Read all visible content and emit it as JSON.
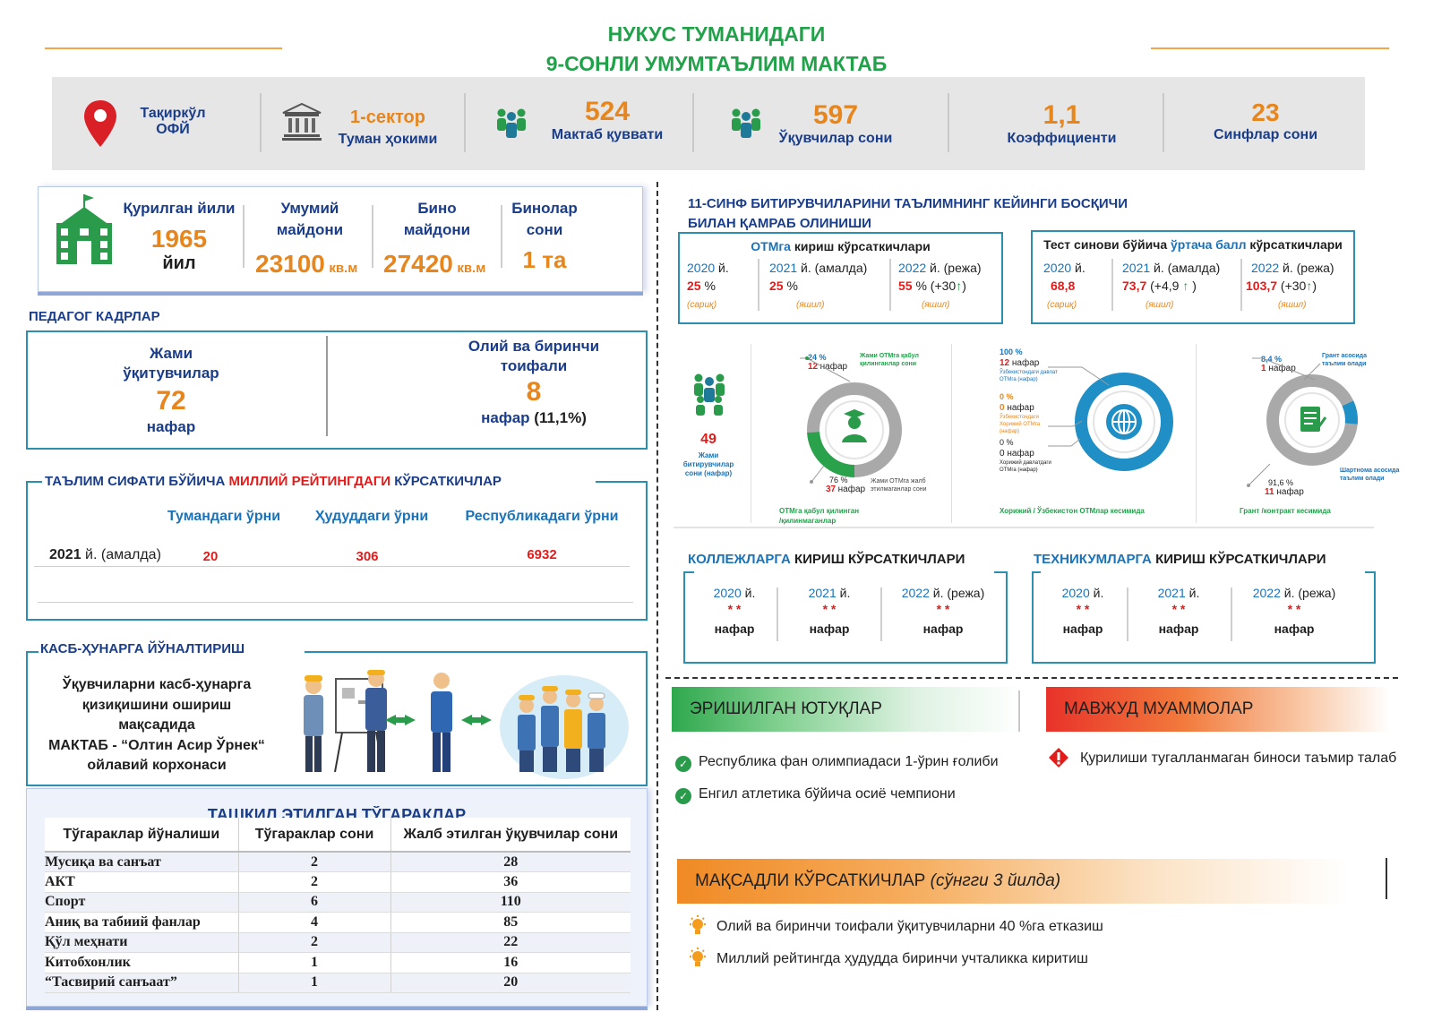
{
  "header": {
    "title_line1": "НУКУС ТУМАНИДАГИ",
    "title_line2": "9-СОНЛИ УМУМТАЪЛИМ МАКТАБ"
  },
  "stats": {
    "location_line1": "Тақиркўл",
    "location_line2": "ОФЙ",
    "sector_value": "1-сектор",
    "sector_label": "Туман ҳокими",
    "capacity_value": "524",
    "capacity_label": "Мактаб қуввати",
    "students_value": "597",
    "students_label": "Ўқувчилар сони",
    "coef_value": "1,1",
    "coef_label": "Коэффициенти",
    "classes_value": "23",
    "classes_label": "Синфлар сони"
  },
  "building": {
    "built_label": "Қурилган йили",
    "built_value": "1965",
    "built_unit": "йил",
    "total_area_label_1": "Умумий",
    "total_area_label_2": "майдони",
    "total_area_value": "23100",
    "total_area_unit": "кв.м",
    "bldg_area_label_1": "Бино",
    "bldg_area_label_2": "майдони",
    "bldg_area_value": "27420",
    "bldg_area_unit": "кв.м",
    "bldg_count_label_1": "Бинолар",
    "bldg_count_label_2": "сони",
    "bldg_count_value": "1 та"
  },
  "teachers": {
    "section_title": "ПЕДАГОГ КАДРЛАР",
    "total_label_1": "Жами",
    "total_label_2": "ўқитувчилар",
    "total_value": "72",
    "total_unit": "нафар",
    "higher_label_1": "Олий ва биринчи",
    "higher_label_2": "тоифали",
    "higher_value": "8",
    "higher_unit": "нафар",
    "higher_pct": "(11,1%)"
  },
  "rating": {
    "title_part1": "ТАЪЛИМ СИФАТИ БЎЙИЧА ",
    "title_part2": "МИЛЛИЙ РЕЙТИНГДАГИ",
    "title_part3": " КЎРСАТКИЧЛАР",
    "col1": "Тумандаги ўрни",
    "col2": "Ҳудуддаги ўрни",
    "col3": "Республикадаги ўрни",
    "row_year": "2021",
    "row_year_suffix": " й. (амалда)",
    "v1": "20",
    "v2": "306",
    "v3": "6932"
  },
  "career": {
    "title": "КАСБ-ҲУНАРГА ЙЎНАЛТИРИШ",
    "text_1": "Ўқувчиларни касб-ҳунарга",
    "text_2": "қизиқишини ошириш",
    "text_3": "мақсадида",
    "text_4": "МАКТАБ - “Олтин Асир Ўрнек“",
    "text_5": "ойлавий корхонаси"
  },
  "clubs": {
    "title": "ТАШКИЛ ЭТИЛГАН ТЎГАРАКЛАР",
    "headers": [
      "Тўгараклар йўналиши",
      "Тўгараклар сони",
      "Жалб этилган ўқувчилар сони"
    ],
    "rows": [
      [
        "Мусиқа ва санъат",
        "2",
        "28"
      ],
      [
        "АКТ",
        "2",
        "36"
      ],
      [
        "Спорт",
        "6",
        "110"
      ],
      [
        "Аниқ ва табиий фанлар",
        "4",
        "85"
      ],
      [
        "Қўл меҳнати",
        "2",
        "22"
      ],
      [
        "Китобхонлик",
        "1",
        "16"
      ],
      [
        "“Тасвирий санъаат”",
        "1",
        "20"
      ]
    ]
  },
  "graduates": {
    "title_1": "11-СИНФ БИТИРУВЧИЛАРИНИ ТАЪЛИМНИНГ КЕЙИНГИ БОСҚИЧИ",
    "title_2": "БИЛАН ҚАМРАБ ОЛИНИШИ",
    "otm_title_a": "ОТМга",
    "otm_title_b": " кириш кўрсаткичлари",
    "otm": [
      {
        "year": "2020",
        "suffix": " й.",
        "value": "25",
        "unit": " %",
        "extra": "",
        "note": "(сариқ)"
      },
      {
        "year": "2021",
        "suffix": " й. (амалда)",
        "value": "25",
        "unit": " %",
        "extra": "",
        "note": "(яшил)"
      },
      {
        "year": "2022",
        "suffix": " й. (режа)",
        "value": "55",
        "unit": " % (+30",
        "extra": "↑",
        "note": "(яшил)"
      }
    ],
    "test_title_a": "Тест синови бўйича ",
    "test_title_b": "ўртача балл",
    "test_title_c": " кўрсаткичлари",
    "test": [
      {
        "year": "2020",
        "suffix": " й.",
        "value": "68,8",
        "extra": "",
        "note": "(сариқ)"
      },
      {
        "year": "2021",
        "suffix": " й. (амалда)",
        "value": "73,7",
        "extra": " (+4,9 ",
        "note": "(яшил)"
      },
      {
        "year": "2022",
        "suffix": " й. (режа)",
        "value": "103,7",
        "extra": " (+30",
        "note": "(яшил)"
      }
    ],
    "total_value": "49",
    "total_label_1": "Жами",
    "total_label_2": "битирувчилар",
    "total_label_3": "сони (нафар)",
    "donut1": {
      "pct_in": "24 %",
      "cnt_in": "12",
      "label_in_1": "Жами ОТМга қабул",
      "label_in_2": "қилинганлар сони",
      "pct_out": "76 %",
      "cnt_out": "37",
      "label_out_1": "Жами ОТМга жалб",
      "label_out_2": "этилмаганлар  сони",
      "caption_1": "ОТМга қабул қилинган",
      "caption_2": "/қилинмаганлар",
      "fraction": 0.24
    },
    "donut2": {
      "pct1": "100 %",
      "cnt1": "12",
      "lbl1_1": "Ўзбекистондаги давлат",
      "lbl1_2": "ОТМга (нафар)",
      "pct2": "0 %",
      "cnt2": "0",
      "lbl2_1": "Ўзбекистондаги",
      "lbl2_2": "Хорижий ОТМга",
      "lbl2_3": "(нафар)",
      "pct3": "0 %",
      "cnt3": "0",
      "lbl3_1": "Хорижий давлатдаги",
      "lbl3_2": "ОТМга (нафар)",
      "caption": "Хорижий / Ўзбекистон ОТМлар кесимида",
      "fraction": 1.0
    },
    "donut3": {
      "pct_in": "8,4 %",
      "cnt_in": "1",
      "label_in_1": "Грант асосида",
      "label_in_2": "таълим олади",
      "pct_out": "91,6 %",
      "cnt_out": "11",
      "label_out_1": "Шартнома  асосида",
      "label_out_2": "таълим олади",
      "caption": "Грант /контракт кесимида",
      "fraction": 0.084
    },
    "unit_people": "нафар"
  },
  "colleges": {
    "title_a": "КОЛЛЕЖЛАРГА",
    "title_b": " КИРИШ КЎРСАТКИЧЛАРИ",
    "items": [
      {
        "year": "2020",
        "suffix": " й.",
        "value": "* *",
        "unit": "нафар"
      },
      {
        "year": "2021",
        "suffix": " й.",
        "value": "* *",
        "unit": "нафар"
      },
      {
        "year": "2022",
        "suffix": " й.  (режа)",
        "value": "* *",
        "unit": "нафар"
      }
    ]
  },
  "technicums": {
    "title_a": "ТЕХНИКУМЛАРГА",
    "title_b": " КИРИШ КЎРСАТКИЧЛАРИ",
    "items": [
      {
        "year": "2020",
        "suffix": " й.",
        "value": "* *",
        "unit": "нафар"
      },
      {
        "year": "2021",
        "suffix": " й.",
        "value": "* *",
        "unit": "нафар"
      },
      {
        "year": "2022",
        "suffix": " й.  (режа)",
        "value": "* *",
        "unit": "нафар"
      }
    ]
  },
  "achievements": {
    "title": "ЭРИШИЛГАН ЮТУҚЛАР",
    "items": [
      "Республика фан олимпиадаси 1-ўрин ғолиби",
      "Енгил атлетика бўйича осиё чемпиони"
    ]
  },
  "problems": {
    "title": "МАВЖУД МУАММОЛАР",
    "items": [
      "Қурилиши тугалланмаган биноси таъмир талаб"
    ]
  },
  "targets": {
    "title_a": "МАҚСАДЛИ КЎРСАТКИЧЛАР",
    "title_b": " (сўнгги 3 йилда)",
    "items": [
      "Олий ва биринчи тоифали ўқитувчиларни 40 %га етказиш",
      "Миллий рейтингда ҳудудда биринчи учталикка киритиш"
    ]
  },
  "colors": {
    "green": "#21a24a",
    "orange": "#e8861e",
    "blue": "#1a73b8",
    "red": "#e21b1b",
    "teal_frame": "#2c8fb0"
  }
}
